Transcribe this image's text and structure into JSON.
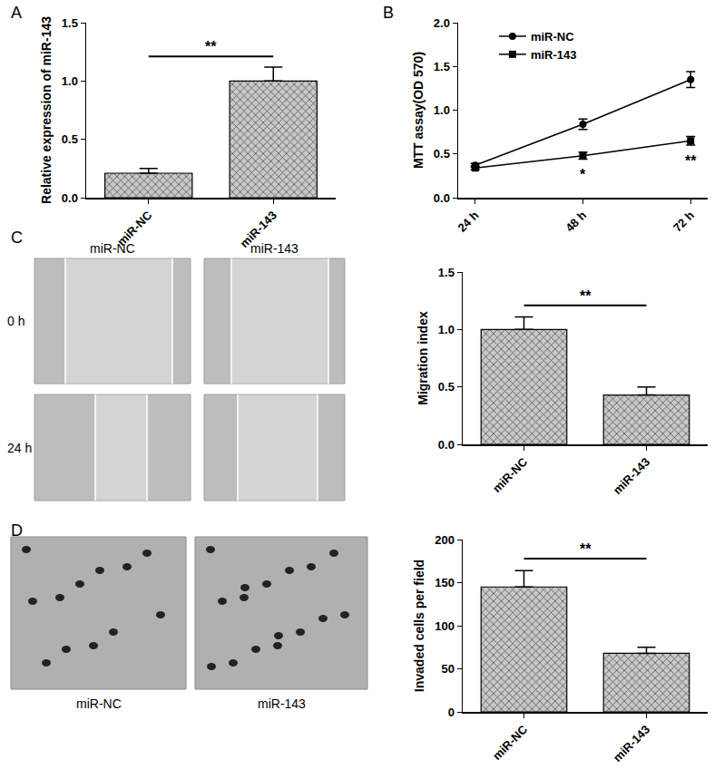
{
  "chart_data": [
    {
      "panel_label": "A",
      "type": "bar",
      "categories": [
        "miR-NC",
        "miR-143"
      ],
      "values": [
        0.21,
        1.0
      ],
      "errors": [
        0.04,
        0.12
      ],
      "color": "#c8c8c8",
      "y_label": "Relative expression of miR-143",
      "ylim": [
        0,
        1.5
      ],
      "yticks": [
        {
          "value": 0,
          "label": "0.0"
        },
        0.5,
        {
          "value": 1,
          "label": "1.0"
        },
        1.5
      ],
      "significance": [
        {
          "text": "**",
          "from": "miR-NC",
          "to": "miR-143",
          "y": 1.21
        }
      ],
      "grid": false
    },
    {
      "panel_label": "B",
      "type": "line",
      "categories": [
        "24 h",
        "48 h",
        "72 h"
      ],
      "series": [
        {
          "name": "miR-NC",
          "color": "#000000",
          "marker": "circle",
          "values": [
            0.37,
            0.84,
            1.35
          ],
          "errors": [
            0.02,
            0.06,
            0.09
          ]
        },
        {
          "name": "miR-143",
          "color": "#000000",
          "marker": "square",
          "values": [
            0.34,
            0.48,
            0.65
          ],
          "errors": [
            0.02,
            0.04,
            0.05
          ]
        }
      ],
      "y_label": "MTT assay(OD 570)",
      "ylim": [
        0,
        2
      ],
      "yticks": [
        {
          "value": 0,
          "label": "0.0"
        },
        0.5,
        {
          "value": 1,
          "label": "1.0"
        },
        1.5,
        {
          "value": 2,
          "label": "2.0"
        }
      ],
      "annotations": [
        {
          "text": "*",
          "x": "48 h",
          "y": 0.37
        },
        {
          "text": "**",
          "x": "72 h",
          "y": 0.53
        }
      ],
      "legend": "upper left",
      "grid": false
    },
    {
      "type": "bar",
      "categories": [
        "miR-NC",
        "miR-143"
      ],
      "values": [
        1.0,
        0.43
      ],
      "errors": [
        0.11,
        0.07
      ],
      "color": "#c8c8c8",
      "y_label": "Migration index",
      "ylim": [
        0,
        1.5
      ],
      "yticks": [
        {
          "value": 0,
          "label": "0.0"
        },
        0.5,
        {
          "value": 1,
          "label": "1.0"
        },
        1.5
      ],
      "significance": [
        {
          "text": "**",
          "from": "miR-NC",
          "to": "miR-143",
          "y": 1.21
        }
      ],
      "grid": false
    },
    {
      "type": "bar",
      "categories": [
        "miR-NC",
        "miR-143"
      ],
      "values": [
        145,
        68
      ],
      "errors": [
        19,
        7
      ],
      "color": "#c8c8c8",
      "y_label": "Invaded cells per field",
      "ylim": [
        0,
        200
      ],
      "yticks": [
        0,
        50,
        100,
        150,
        200
      ],
      "significance": [
        {
          "text": "**",
          "from": "miR-NC",
          "to": "miR-143",
          "y": 178
        }
      ],
      "grid": false
    }
  ],
  "image_panels": [
    {
      "panel_label": "C",
      "columns": [
        "miR-NC",
        "miR-143"
      ],
      "rows": [
        "0 h",
        "24 h"
      ]
    },
    {
      "panel_label": "D",
      "captions": [
        "miR-NC",
        "miR-143"
      ]
    }
  ]
}
